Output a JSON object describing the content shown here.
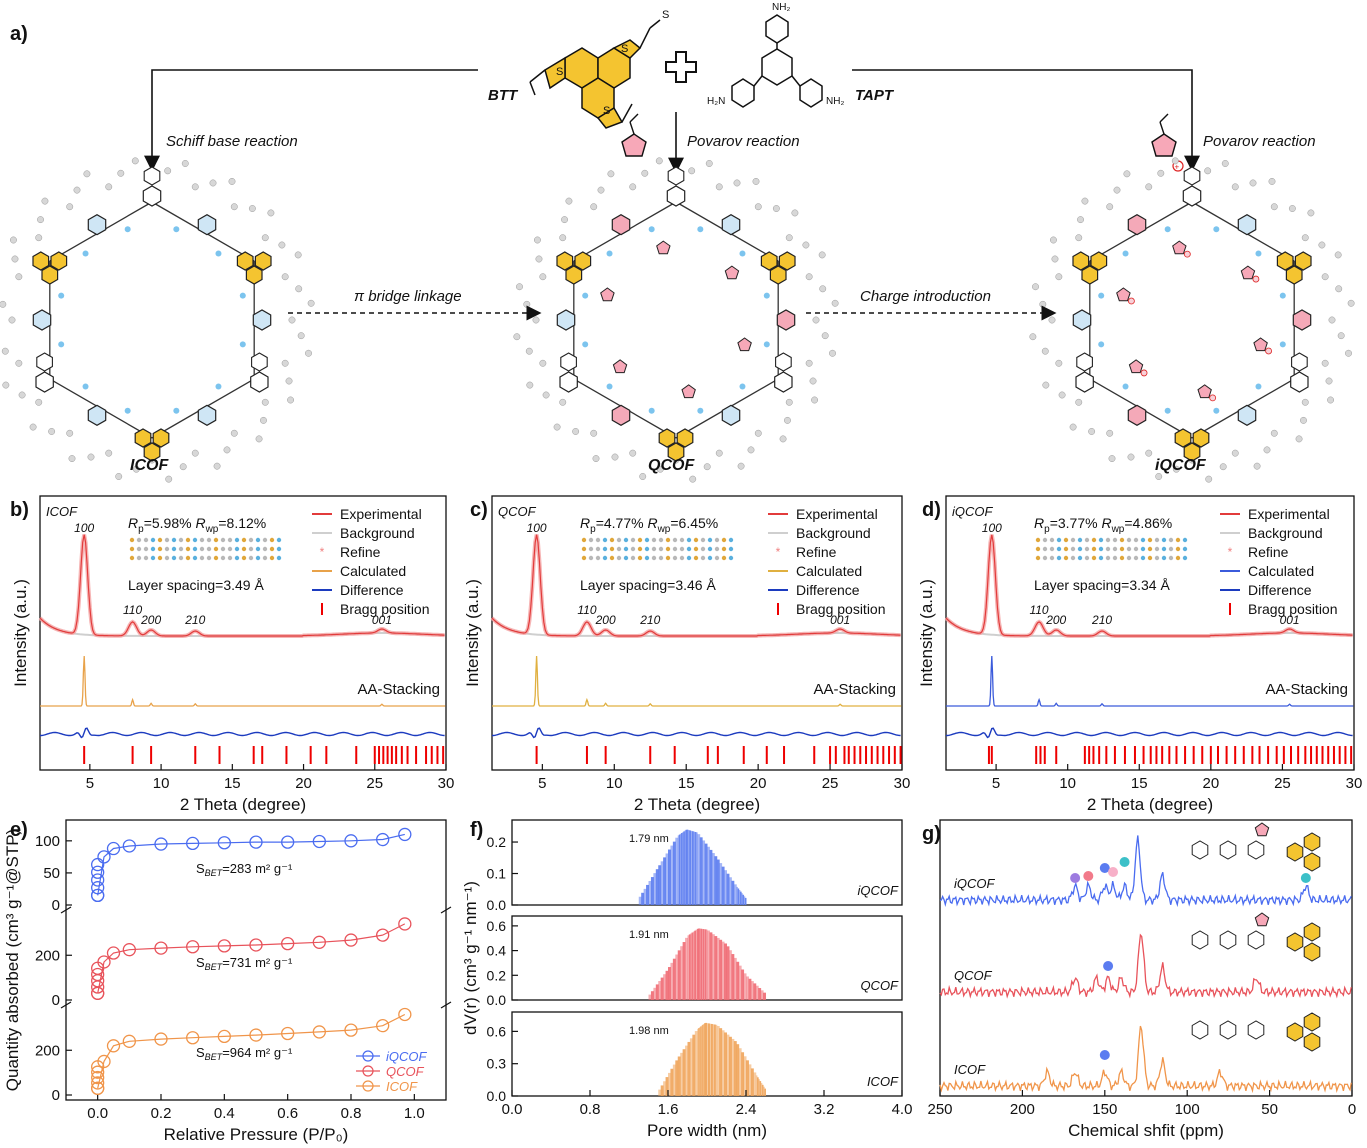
{
  "panel_labels": {
    "a": "a)",
    "b": "b)",
    "c": "c)",
    "d": "d)",
    "e": "e)",
    "f": "f)",
    "g": "g)"
  },
  "scheme": {
    "btt": "BTT",
    "tapt": "TAPT",
    "schiff": "Schiff base reaction",
    "povarov1": "Povarov reaction",
    "povarov2": "Povarov reaction",
    "pi_bridge": "π bridge linkage",
    "charge": "Charge introduction",
    "icof": "ICOF",
    "qcof": "QCOF",
    "iqcof": "iQCOF",
    "atoms": {
      "S": "S",
      "N": "N",
      "NH2": "NH₂",
      "H2N": "H₂N",
      "plus": "⊕"
    }
  },
  "xrd": {
    "ylabel": "Intensity (a.u.)",
    "xlabel": "2 Theta (degree)",
    "xticks": [
      "5",
      "10",
      "15",
      "20",
      "25",
      "30"
    ],
    "legend": [
      "Experimental",
      "Background",
      "Refine",
      "Calculated",
      "Difference",
      "Bragg position"
    ],
    "stacking": "AA-Stacking",
    "hkl": [
      "100",
      "110",
      "200",
      "210",
      "001"
    ],
    "panels": [
      {
        "name": "ICOF",
        "rp": "=5.98%",
        "rwp": "=8.12%",
        "layer": "Layer spacing=3.49 Å",
        "calc_color": "#e8a24a"
      },
      {
        "name": "QCOF",
        "rp": "=4.77%",
        "rwp": "=6.45%",
        "layer": "Layer spacing=3.46 Å",
        "calc_color": "#e0b040"
      },
      {
        "name": "iQCOF",
        "rp": "=3.77%",
        "rwp": "=4.86%",
        "layer": "Layer spacing=3.34 Å",
        "calc_color": "#3b5bdb"
      }
    ],
    "R": "R",
    "p": "p",
    "wp": "wp"
  },
  "isotherm": {
    "ylabel": "Quantity absorbed (cm³ g⁻¹@STP)",
    "xlabel": "Relative Pressure (P/P₀)",
    "xticks": [
      "0.0",
      "0.2",
      "0.4",
      "0.6",
      "0.8",
      "1.0"
    ],
    "yticks_top": [
      "0",
      "50",
      "100"
    ],
    "yticks_mid": [
      "0",
      "200"
    ],
    "yticks_bot": [
      "0",
      "200"
    ],
    "sbet": [
      "S",
      "BET",
      "=283 m² g⁻¹",
      "=731 m² g⁻¹",
      "=964 m² g⁻¹"
    ],
    "legend": [
      "iQCOF",
      "QCOF",
      "ICOF"
    ]
  },
  "psd": {
    "ylabel": "dV(r) (cm³ g⁻¹ nm⁻¹)",
    "xlabel": "Pore width (nm)",
    "xticks": [
      "0.0",
      "0.8",
      "1.6",
      "2.4",
      "3.2",
      "4.0"
    ],
    "panels": [
      {
        "name": "iQCOF",
        "peak": "1.79 nm",
        "yticks": [
          "0.0",
          "0.1",
          "0.2"
        ],
        "color": "#5b7cf0"
      },
      {
        "name": "QCOF",
        "peak": "1.91 nm",
        "yticks": [
          "0.0",
          "0.2",
          "0.4",
          "0.6"
        ],
        "color": "#f06a73"
      },
      {
        "name": "ICOF",
        "peak": "1.98 nm",
        "yticks": [
          "0.0",
          "0.3",
          "0.6"
        ],
        "color": "#f0a45a"
      }
    ]
  },
  "nmr": {
    "xlabel": "Chemical shfit (ppm)",
    "xticks": [
      "250",
      "200",
      "150",
      "100",
      "50",
      "0"
    ],
    "labels": [
      "iQCOF",
      "QCOF",
      "ICOF"
    ]
  },
  "chart_data": [
    {
      "type": "line",
      "title": "",
      "xlabel": "2 Theta (degree)",
      "ylabel": "Intensity (a.u.)",
      "xlim": [
        1.5,
        30
      ],
      "series": [
        {
          "name": "ICOF",
          "peaks_2theta": [
            4.6,
            8.0,
            9.3,
            12.4,
            25.5
          ],
          "hkl": [
            "100",
            "110",
            "200",
            "210",
            "001"
          ]
        }
      ]
    },
    {
      "type": "line",
      "title": "",
      "xlabel": "2 Theta (degree)",
      "ylabel": "Intensity (a.u.)",
      "xlim": [
        1.5,
        30
      ],
      "series": [
        {
          "name": "QCOF",
          "peaks_2theta": [
            4.6,
            8.1,
            9.4,
            12.5,
            25.7
          ],
          "hkl": [
            "100",
            "110",
            "200",
            "210",
            "001"
          ]
        }
      ]
    },
    {
      "type": "line",
      "title": "",
      "xlabel": "2 Theta (degree)",
      "ylabel": "Intensity (a.u.)",
      "xlim": [
        1.5,
        30
      ],
      "series": [
        {
          "name": "iQCOF",
          "peaks_2theta": [
            4.7,
            8.0,
            9.2,
            12.4,
            25.5
          ],
          "hkl": [
            "100",
            "110",
            "200",
            "210",
            "001"
          ]
        }
      ]
    },
    {
      "type": "scatter",
      "title": "",
      "xlabel": "Relative Pressure (P/P₀)",
      "ylabel": "Quantity absorbed",
      "xlim": [
        -0.1,
        1.1
      ],
      "series": [
        {
          "name": "iQCOF",
          "x": [
            0.0,
            0.02,
            0.05,
            0.1,
            0.2,
            0.3,
            0.4,
            0.5,
            0.6,
            0.7,
            0.8,
            0.9,
            0.97
          ],
          "y": [
            15,
            75,
            88,
            92,
            95,
            96,
            97,
            98,
            98,
            99,
            100,
            102,
            110
          ]
        },
        {
          "name": "QCOF",
          "x": [
            0.0,
            0.02,
            0.05,
            0.1,
            0.2,
            0.3,
            0.4,
            0.5,
            0.6,
            0.7,
            0.8,
            0.9,
            0.97
          ],
          "y": [
            30,
            170,
            210,
            225,
            232,
            238,
            242,
            246,
            252,
            258,
            268,
            290,
            340
          ]
        },
        {
          "name": "ICOF",
          "x": [
            0.0,
            0.02,
            0.05,
            0.1,
            0.2,
            0.3,
            0.4,
            0.5,
            0.6,
            0.7,
            0.8,
            0.9,
            0.97
          ],
          "y": [
            30,
            150,
            220,
            240,
            250,
            256,
            262,
            268,
            275,
            282,
            290,
            310,
            360
          ]
        }
      ]
    },
    {
      "type": "area",
      "title": "",
      "xlabel": "Pore width (nm)",
      "ylabel": "dV(r)",
      "xlim": [
        0,
        4
      ],
      "series": [
        {
          "name": "iQCOF",
          "x": [
            1.3,
            1.5,
            1.7,
            1.79,
            1.9,
            2.1,
            2.3,
            2.4
          ],
          "y": [
            0.02,
            0.12,
            0.22,
            0.24,
            0.23,
            0.15,
            0.06,
            0.02
          ]
        },
        {
          "name": "QCOF",
          "x": [
            1.4,
            1.6,
            1.8,
            1.91,
            2.0,
            2.2,
            2.4,
            2.6
          ],
          "y": [
            0.03,
            0.25,
            0.52,
            0.58,
            0.57,
            0.45,
            0.2,
            0.05
          ]
        },
        {
          "name": "ICOF",
          "x": [
            1.5,
            1.7,
            1.9,
            1.98,
            2.1,
            2.3,
            2.5,
            2.6
          ],
          "y": [
            0.04,
            0.35,
            0.62,
            0.68,
            0.66,
            0.5,
            0.2,
            0.06
          ]
        }
      ]
    },
    {
      "type": "line",
      "title": "",
      "xlabel": "Chemical shfit (ppm)",
      "xlim": [
        250,
        0
      ],
      "series": [
        {
          "name": "iQCOF",
          "peaks_ppm": [
            168,
            160,
            150,
            145,
            138,
            130,
            115,
            28
          ]
        },
        {
          "name": "QCOF",
          "peaks_ppm": [
            168,
            155,
            148,
            140,
            128,
            115,
            58
          ]
        },
        {
          "name": "ICOF",
          "peaks_ppm": [
            185,
            168,
            150,
            140,
            128,
            115,
            80
          ]
        }
      ]
    }
  ]
}
